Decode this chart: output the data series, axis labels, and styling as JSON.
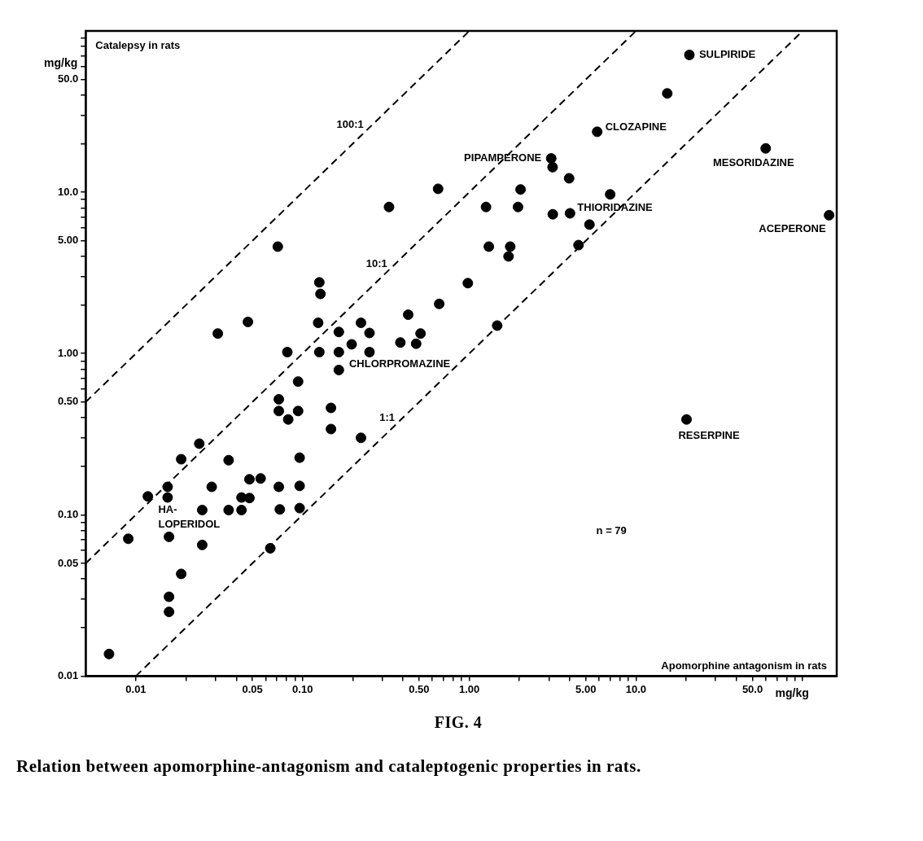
{
  "chart_data": {
    "type": "scatter",
    "xlabel": "mg/kg",
    "ylabel": "mg/kg",
    "log": "xy",
    "xlim": [
      0.005,
      160
    ],
    "ylim": [
      0.01,
      100
    ],
    "xticks": [
      {
        "value": 0.01,
        "label": "0.01"
      },
      {
        "value": 0.02,
        "label": null
      },
      {
        "value": 0.03,
        "label": null
      },
      {
        "value": 0.04,
        "label": null
      },
      {
        "value": 0.05,
        "label": "0.05"
      },
      {
        "value": 0.06,
        "label": null
      },
      {
        "value": 0.07,
        "label": null
      },
      {
        "value": 0.08,
        "label": null
      },
      {
        "value": 0.09,
        "label": null
      },
      {
        "value": 0.1,
        "label": "0.10"
      },
      {
        "value": 0.2,
        "label": null
      },
      {
        "value": 0.3,
        "label": null
      },
      {
        "value": 0.4,
        "label": null
      },
      {
        "value": 0.5,
        "label": "0.50"
      },
      {
        "value": 0.6,
        "label": null
      },
      {
        "value": 0.7,
        "label": null
      },
      {
        "value": 0.8,
        "label": null
      },
      {
        "value": 0.9,
        "label": null
      },
      {
        "value": 1,
        "label": "1.00"
      },
      {
        "value": 2,
        "label": null
      },
      {
        "value": 3,
        "label": null
      },
      {
        "value": 4,
        "label": null
      },
      {
        "value": 5,
        "label": "5.00"
      },
      {
        "value": 6,
        "label": null
      },
      {
        "value": 7,
        "label": null
      },
      {
        "value": 8,
        "label": null
      },
      {
        "value": 9,
        "label": null
      },
      {
        "value": 10,
        "label": "10.0"
      },
      {
        "value": 20,
        "label": null
      },
      {
        "value": 30,
        "label": null
      },
      {
        "value": 40,
        "label": null
      },
      {
        "value": 50,
        "label": "50.0"
      },
      {
        "value": 60,
        "label": null
      },
      {
        "value": 70,
        "label": null
      },
      {
        "value": 80,
        "label": null
      },
      {
        "value": 90,
        "label": null
      },
      {
        "value": 100,
        "label": null
      }
    ],
    "yticks": [
      {
        "value": 0.01,
        "label": "0.01"
      },
      {
        "value": 0.02,
        "label": null
      },
      {
        "value": 0.03,
        "label": null
      },
      {
        "value": 0.04,
        "label": null
      },
      {
        "value": 0.05,
        "label": "0.05"
      },
      {
        "value": 0.06,
        "label": null
      },
      {
        "value": 0.07,
        "label": null
      },
      {
        "value": 0.08,
        "label": null
      },
      {
        "value": 0.09,
        "label": null
      },
      {
        "value": 0.1,
        "label": "0.10"
      },
      {
        "value": 0.2,
        "label": null
      },
      {
        "value": 0.3,
        "label": null
      },
      {
        "value": 0.4,
        "label": null
      },
      {
        "value": 0.5,
        "label": "0.50"
      },
      {
        "value": 0.6,
        "label": null
      },
      {
        "value": 0.7,
        "label": null
      },
      {
        "value": 0.8,
        "label": null
      },
      {
        "value": 0.9,
        "label": null
      },
      {
        "value": 1,
        "label": "1.00"
      },
      {
        "value": 2,
        "label": null
      },
      {
        "value": 3,
        "label": null
      },
      {
        "value": 4,
        "label": null
      },
      {
        "value": 5,
        "label": "5.00"
      },
      {
        "value": 6,
        "label": null
      },
      {
        "value": 7,
        "label": null
      },
      {
        "value": 8,
        "label": null
      },
      {
        "value": 9,
        "label": null
      },
      {
        "value": 10,
        "label": "10.0"
      },
      {
        "value": 20,
        "label": null
      },
      {
        "value": 30,
        "label": null
      },
      {
        "value": 40,
        "label": null
      },
      {
        "value": 50,
        "label": "50.0"
      },
      {
        "value": 60,
        "label": null
      },
      {
        "value": 70,
        "label": null
      },
      {
        "value": 80,
        "label": null
      },
      {
        "value": 90,
        "label": null
      }
    ],
    "grid": false,
    "legend": false,
    "marker": "circle",
    "series": [
      {
        "color": "#000000",
        "x": [
          0.33,
          0.071,
          0.126,
          0.128,
          0.047,
          0.031,
          0.124,
          0.43,
          0.224,
          0.165,
          0.252,
          0.51,
          0.197,
          0.386,
          0.48,
          0.081,
          0.126,
          0.165,
          0.252,
          0.165,
          0.094,
          0.072,
          0.072,
          0.094,
          0.082,
          0.148,
          0.148,
          0.224,
          0.024,
          0.0187,
          0.036,
          0.096,
          0.0155,
          0.0285,
          0.048,
          0.056,
          0.072,
          0.096,
          0.0118,
          0.0155,
          0.043,
          0.048,
          0.025,
          0.036,
          0.043,
          0.073,
          0.096,
          0.009,
          0.0158,
          0.025,
          0.064,
          0.0187,
          0.0158,
          0.0158,
          0.0069,
          20.9,
          15.4,
          5.85,
          60,
          3.1,
          3.16,
          3.97,
          0.65,
          2.03,
          7.0,
          1.26,
          1.96,
          3.17,
          4.02,
          144,
          5.26,
          4.52,
          1.31,
          1.76,
          1.72,
          0.98,
          0.66,
          1.47,
          20.1
        ],
        "values": [
          8.1,
          4.6,
          2.76,
          2.34,
          1.57,
          1.33,
          1.55,
          1.74,
          1.55,
          1.36,
          1.34,
          1.33,
          1.14,
          1.17,
          1.15,
          1.02,
          1.02,
          1.02,
          1.02,
          0.79,
          0.67,
          0.52,
          0.44,
          0.44,
          0.39,
          0.46,
          0.34,
          0.3,
          0.276,
          0.221,
          0.218,
          0.226,
          0.149,
          0.149,
          0.166,
          0.168,
          0.149,
          0.151,
          0.13,
          0.128,
          0.128,
          0.127,
          0.107,
          0.107,
          0.107,
          0.108,
          0.11,
          0.071,
          0.073,
          0.065,
          0.062,
          0.043,
          0.031,
          0.025,
          0.0137,
          71,
          41,
          23.7,
          18.7,
          16.2,
          14.3,
          12.2,
          10.5,
          10.4,
          9.7,
          8.1,
          8.1,
          7.3,
          7.4,
          7.2,
          6.3,
          4.7,
          4.6,
          4.6,
          4.0,
          2.73,
          2.03,
          1.49,
          0.39
        ]
      },
      {
        "type": "line",
        "color": "#000000",
        "marker": "none",
        "line_style": "dashed",
        "x": [
          0.005,
          1
        ],
        "values": [
          0.5,
          100
        ]
      },
      {
        "type": "line",
        "color": "#000000",
        "marker": "none",
        "line_style": "dashed",
        "x": [
          0.005,
          10
        ],
        "values": [
          0.05,
          100
        ]
      },
      {
        "type": "line",
        "color": "#000000",
        "marker": "none",
        "line_style": "dashed",
        "x": [
          0.01,
          100
        ],
        "values": [
          0.01,
          100
        ]
      }
    ],
    "annotations": [
      "Catalepsy in rats",
      "Apomorphine antagonism in rats",
      "n = 79",
      "FIG. 4",
      "Relation between apomorphine-antagonism and cataleptogenic properties in rats.",
      {
        "text": "100:1",
        "x": 0.26,
        "y": 26
      },
      {
        "text": "10:1",
        "x": 0.36,
        "y": 3.6
      },
      {
        "text": "1:1",
        "x": 0.4,
        "y": 0.4
      },
      {
        "text": "SULPIRIDE",
        "x": 20.9,
        "y": 71
      },
      {
        "text": "CLOZAPINE",
        "x": 5.85,
        "y": 23.7
      },
      {
        "text": "PIPAMPERONE",
        "x": 3.1,
        "y": 16.2
      },
      {
        "text": "MESORIDAZINE",
        "x": 60,
        "y": 18.7
      },
      {
        "text": "THIORIDAZINE",
        "x": 4.02,
        "y": 7.4
      },
      {
        "text": "ACEPERONE",
        "x": 144,
        "y": 7.2
      },
      {
        "text": "CHLORPROMAZINE",
        "x": 0.252,
        "y": 1.02
      },
      {
        "text": "RESERPINE",
        "x": 20.1,
        "y": 0.39
      },
      {
        "text": "HA-\nLOPERIDOL",
        "x": 0.025,
        "y": 0.107
      }
    ]
  }
}
